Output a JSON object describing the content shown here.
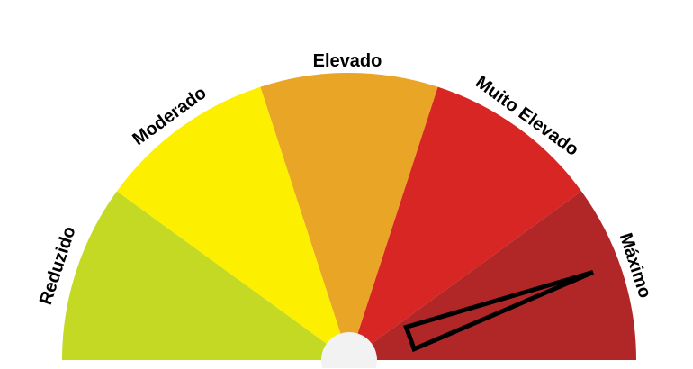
{
  "gauge": {
    "segments": [
      {
        "label": "Reduzido",
        "color": "#c3d924"
      },
      {
        "label": "Moderado",
        "color": "#fcf000"
      },
      {
        "label": "Elevado",
        "color": "#e9a526"
      },
      {
        "label": "Muito Elevado",
        "color": "#d72623"
      },
      {
        "label": "Máximo",
        "color": "#b12727"
      }
    ],
    "needle_fraction": 0.89,
    "current_level": "Máximo",
    "needle_color": "#000000",
    "hub_color": "#f2f2f2"
  }
}
